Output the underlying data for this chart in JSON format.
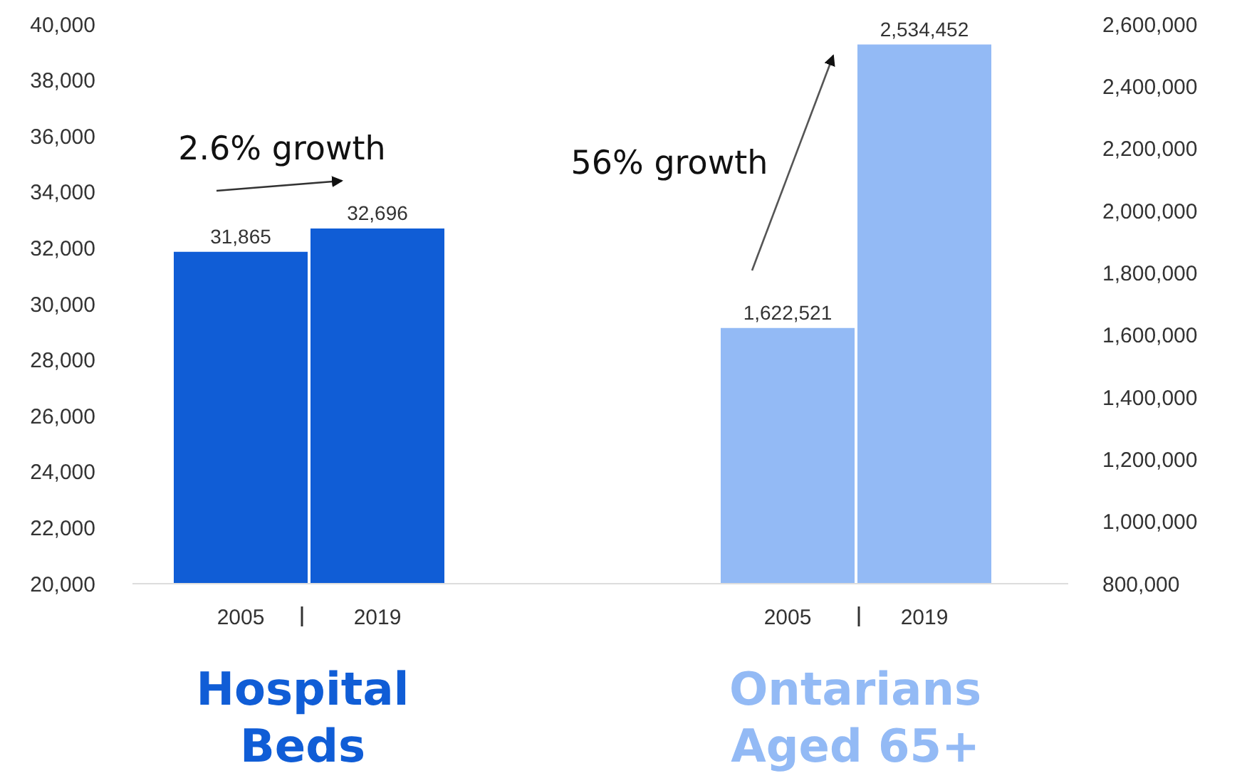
{
  "chart_data": {
    "type": "bar",
    "categories": [
      "2005",
      "2019",
      null,
      null,
      "2005",
      "2019"
    ],
    "series": [
      {
        "name": "Hospital Beds",
        "color": "#105dd6",
        "values": [
          31865,
          32696,
          null,
          null,
          null,
          null
        ],
        "value_labels": [
          "31,865",
          "32,696",
          null,
          null,
          null,
          null
        ]
      },
      {
        "name": "Ontarians Aged 65+",
        "color": "#93baf5",
        "axis": "y2",
        "values": [
          null,
          null,
          null,
          null,
          1622521,
          2534452
        ],
        "value_labels": [
          null,
          null,
          null,
          null,
          "1,622,521",
          "2,534,452"
        ]
      }
    ],
    "ylim": [
      20000,
      40000
    ],
    "yticks": [
      {
        "value": 20000,
        "label": "20,000"
      },
      {
        "value": 22000,
        "label": "22,000"
      },
      {
        "value": 24000,
        "label": "24,000"
      },
      {
        "value": 26000,
        "label": "26,000"
      },
      {
        "value": 28000,
        "label": "28,000"
      },
      {
        "value": 30000,
        "label": "30,000"
      },
      {
        "value": 32000,
        "label": "32,000"
      },
      {
        "value": 34000,
        "label": "34,000"
      },
      {
        "value": 36000,
        "label": "36,000"
      },
      {
        "value": 38000,
        "label": "38,000"
      },
      {
        "value": 40000,
        "label": "40,000"
      }
    ],
    "y2lim": [
      800000,
      2600000
    ],
    "y2ticks": [
      {
        "value": 800000,
        "label": "800,000"
      },
      {
        "value": 1000000,
        "label": "1,000,000"
      },
      {
        "value": 1200000,
        "label": "1,200,000"
      },
      {
        "value": 1400000,
        "label": "1,400,000"
      },
      {
        "value": 1600000,
        "label": "1,600,000"
      },
      {
        "value": 1800000,
        "label": "1,800,000"
      },
      {
        "value": 2000000,
        "label": "2,000,000"
      },
      {
        "value": 2200000,
        "label": "2,200,000"
      },
      {
        "value": 2400000,
        "label": "2,400,000"
      },
      {
        "value": 2600000,
        "label": "2,600,000"
      }
    ],
    "grid": false,
    "legend": "bottom",
    "annotations": [
      "2.6% growth",
      "56% growth"
    ]
  }
}
